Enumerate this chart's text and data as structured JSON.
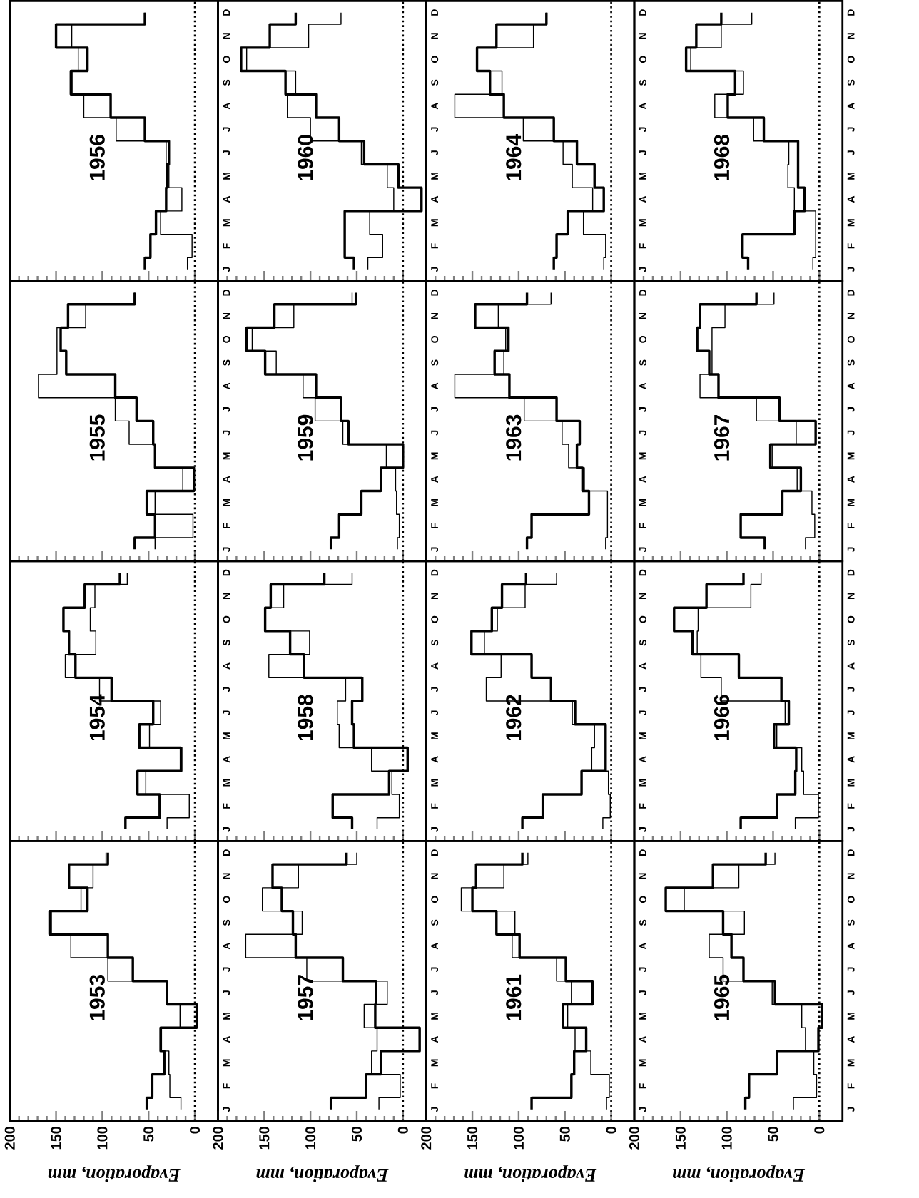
{
  "chart_data": [
    {
      "type": "step",
      "orientation": "horizontal",
      "title": "1953",
      "xlabel": "Evaporation, mm",
      "categories": [
        "D",
        "N",
        "O",
        "S",
        "A",
        "J",
        "J",
        "M",
        "A",
        "M",
        "F",
        "J"
      ],
      "xlim": [
        200,
        -25
      ],
      "xticks": [
        200,
        150,
        100,
        50,
        0
      ],
      "ref_lines": [
        {
          "axis": "x",
          "value": 0,
          "line_style": "dotted"
        }
      ],
      "series": [
        {
          "color": "#000000",
          "values": [
            94,
            136,
            116,
            157,
            94,
            67,
            30,
            -2,
            37,
            33,
            46,
            52
          ]
        },
        {
          "color": "#000000",
          "values": [
            96,
            110,
            123,
            155,
            134,
            94,
            31,
            16,
            36,
            28,
            27,
            15
          ]
        }
      ]
    },
    {
      "type": "step",
      "orientation": "horizontal",
      "title": "1954",
      "tick_labels": "y",
      "categories": [
        "D",
        "N",
        "O",
        "S",
        "A",
        "J",
        "J",
        "M",
        "A",
        "M",
        "F",
        "J"
      ],
      "xlim": [
        200,
        -25
      ],
      "xticks": [
        200,
        150,
        100,
        50,
        0
      ],
      "ref_lines": [
        {
          "axis": "x",
          "value": 0,
          "line_style": "dotted"
        }
      ],
      "series": [
        {
          "color": "#000000",
          "values": [
            81,
            119,
            142,
            136,
            129,
            90,
            45,
            60,
            15,
            62,
            38,
            75
          ]
        },
        {
          "color": "#000000",
          "values": [
            73,
            108,
            113,
            107,
            140,
            103,
            37,
            49,
            14,
            53,
            6,
            30
          ]
        }
      ]
    },
    {
      "type": "step",
      "orientation": "horizontal",
      "title": "1955",
      "tick_labels": "y",
      "categories": [
        "D",
        "N",
        "O",
        "S",
        "A",
        "J",
        "J",
        "M",
        "A",
        "M",
        "F",
        "J"
      ],
      "xlim": [
        200,
        -25
      ],
      "xticks": [
        200,
        150,
        100,
        50,
        0
      ],
      "ref_lines": [
        {
          "axis": "x",
          "value": 0,
          "line_style": "dotted"
        }
      ],
      "series": [
        {
          "color": "#000000",
          "values": [
            65,
            137,
            145,
            139,
            86,
            63,
            45,
            43,
            1,
            52,
            43,
            65
          ]
        },
        {
          "color": "#000000",
          "values": [
            65,
            118,
            149,
            149,
            169,
            86,
            71,
            43,
            13,
            43,
            2,
            43
          ]
        }
      ]
    },
    {
      "type": "step",
      "orientation": "horizontal",
      "title": "1956",
      "tick_labels": "y",
      "categories": [
        "D",
        "N",
        "O",
        "S",
        "A",
        "J",
        "J",
        "M",
        "A",
        "M",
        "F",
        "J"
      ],
      "xlim": [
        200,
        -25
      ],
      "xticks": [
        200,
        150,
        100,
        50,
        0
      ],
      "ref_lines": [
        {
          "axis": "x",
          "value": 0,
          "line_style": "dotted"
        }
      ],
      "series": [
        {
          "color": "#000000",
          "values": [
            54,
            150,
            116,
            134,
            91,
            54,
            28,
            30,
            31,
            42,
            48,
            54
          ]
        },
        {
          "color": "#000000",
          "values": [
            54,
            133,
            126,
            132,
            120,
            85,
            31,
            28,
            14,
            37,
            3,
            8
          ]
        }
      ]
    },
    {
      "type": "step",
      "orientation": "horizontal",
      "title": "1957",
      "xlabel": "Evaporation, mm",
      "categories": [
        "D",
        "N",
        "O",
        "S",
        "A",
        "J",
        "J",
        "M",
        "A",
        "M",
        "F",
        "J"
      ],
      "xlim": [
        200,
        -25
      ],
      "xticks": [
        200,
        150,
        100,
        50,
        0
      ],
      "ref_lines": [
        {
          "axis": "x",
          "value": 0,
          "line_style": "dotted"
        }
      ],
      "series": [
        {
          "color": "#000000",
          "values": [
            61,
            141,
            131,
            119,
            116,
            65,
            29,
            30,
            -18,
            24,
            40,
            78
          ]
        },
        {
          "color": "#000000",
          "values": [
            50,
            113,
            152,
            109,
            170,
            104,
            17,
            42,
            28,
            34,
            3,
            26
          ]
        }
      ]
    },
    {
      "type": "step",
      "orientation": "horizontal",
      "title": "1958",
      "tick_labels": "y",
      "categories": [
        "D",
        "N",
        "O",
        "S",
        "A",
        "J",
        "J",
        "M",
        "A",
        "M",
        "F",
        "J"
      ],
      "xlim": [
        200,
        -25
      ],
      "xticks": [
        200,
        150,
        100,
        50,
        0
      ],
      "ref_lines": [
        {
          "axis": "x",
          "value": 0,
          "line_style": "dotted"
        }
      ],
      "series": [
        {
          "color": "#000000",
          "values": [
            85,
            143,
            149,
            122,
            107,
            44,
            55,
            53,
            -5,
            15,
            76,
            55
          ]
        },
        {
          "color": "#000000",
          "values": [
            55,
            129,
            149,
            101,
            145,
            62,
            71,
            69,
            34,
            12,
            4,
            28
          ]
        }
      ]
    },
    {
      "type": "step",
      "orientation": "horizontal",
      "title": "1959",
      "tick_labels": "y",
      "categories": [
        "D",
        "N",
        "O",
        "S",
        "A",
        "J",
        "J",
        "M",
        "A",
        "M",
        "F",
        "J"
      ],
      "xlim": [
        200,
        -25
      ],
      "xticks": [
        200,
        150,
        100,
        50,
        0
      ],
      "ref_lines": [
        {
          "axis": "x",
          "value": 0,
          "line_style": "dotted"
        }
      ],
      "series": [
        {
          "color": "#000000",
          "values": [
            51,
            139,
            169,
            149,
            94,
            67,
            59,
            0,
            24,
            45,
            69,
            78
          ]
        },
        {
          "color": "#000000",
          "values": [
            55,
            118,
            163,
            137,
            108,
            95,
            65,
            18,
            8,
            7,
            4,
            6
          ]
        }
      ]
    },
    {
      "type": "step",
      "orientation": "horizontal",
      "title": "1960",
      "tick_labels": "y",
      "categories": [
        "D",
        "N",
        "O",
        "S",
        "A",
        "J",
        "J",
        "M",
        "A",
        "M",
        "F",
        "J"
      ],
      "xlim": [
        200,
        -25
      ],
      "xticks": [
        200,
        150,
        100,
        50,
        0
      ],
      "ref_lines": [
        {
          "axis": "x",
          "value": 0,
          "line_style": "dotted"
        }
      ],
      "series": [
        {
          "color": "#000000",
          "values": [
            116,
            144,
            175,
            127,
            94,
            69,
            42,
            5,
            -20,
            63,
            63,
            53
          ]
        },
        {
          "color": "#000000",
          "values": [
            67,
            102,
            169,
            116,
            125,
            100,
            45,
            17,
            10,
            36,
            22,
            38
          ]
        }
      ]
    },
    {
      "type": "step",
      "orientation": "horizontal",
      "title": "1961",
      "xlabel": "Evaporation, mm",
      "categories": [
        "D",
        "N",
        "O",
        "S",
        "A",
        "J",
        "J",
        "M",
        "A",
        "M",
        "F",
        "J"
      ],
      "xlim": [
        200,
        -25
      ],
      "xticks": [
        200,
        150,
        100,
        50,
        0
      ],
      "ref_lines": [
        {
          "axis": "x",
          "value": 0,
          "line_style": "dotted"
        }
      ],
      "series": [
        {
          "color": "#000000",
          "values": [
            96,
            146,
            150,
            124,
            99,
            49,
            20,
            52,
            27,
            40,
            43,
            86
          ]
        },
        {
          "color": "#000000",
          "values": [
            90,
            116,
            162,
            104,
            107,
            59,
            43,
            47,
            39,
            22,
            2,
            5
          ]
        }
      ]
    },
    {
      "type": "step",
      "orientation": "horizontal",
      "title": "1962",
      "tick_labels": "y",
      "categories": [
        "D",
        "N",
        "O",
        "S",
        "A",
        "J",
        "J",
        "M",
        "A",
        "M",
        "F",
        "J"
      ],
      "xlim": [
        200,
        -25
      ],
      "xticks": [
        200,
        150,
        100,
        50,
        0
      ],
      "ref_lines": [
        {
          "axis": "x",
          "value": 0,
          "line_style": "dotted"
        }
      ],
      "series": [
        {
          "color": "#000000",
          "values": [
            92,
            118,
            129,
            151,
            86,
            65,
            39,
            6,
            6,
            32,
            74,
            96
          ]
        },
        {
          "color": "#000000",
          "values": [
            59,
            93,
            123,
            137,
            119,
            135,
            42,
            18,
            21,
            3,
            1,
            9
          ]
        }
      ]
    },
    {
      "type": "step",
      "orientation": "horizontal",
      "title": "1963",
      "tick_labels": "y",
      "categories": [
        "D",
        "N",
        "O",
        "S",
        "A",
        "J",
        "J",
        "M",
        "A",
        "M",
        "F",
        "J"
      ],
      "xlim": [
        200,
        -25
      ],
      "xticks": [
        200,
        150,
        100,
        50,
        0
      ],
      "ref_lines": [
        {
          "axis": "x",
          "value": 0,
          "line_style": "dotted"
        }
      ],
      "series": [
        {
          "color": "#000000",
          "values": [
            91,
            147,
            111,
            126,
            110,
            59,
            34,
            37,
            31,
            24,
            86,
            91
          ]
        },
        {
          "color": "#000000",
          "values": [
            65,
            122,
            114,
            116,
            169,
            94,
            53,
            46,
            29,
            4,
            4,
            6
          ]
        }
      ]
    },
    {
      "type": "step",
      "orientation": "horizontal",
      "title": "1964",
      "tick_labels": "y",
      "categories": [
        "D",
        "N",
        "O",
        "S",
        "A",
        "J",
        "J",
        "M",
        "A",
        "M",
        "F",
        "J"
      ],
      "xlim": [
        200,
        -25
      ],
      "xticks": [
        200,
        150,
        100,
        50,
        0
      ],
      "ref_lines": [
        {
          "axis": "x",
          "value": 0,
          "line_style": "dotted"
        }
      ],
      "series": [
        {
          "color": "#000000",
          "values": [
            70,
            124,
            145,
            131,
            116,
            62,
            37,
            18,
            8,
            47,
            59,
            62
          ]
        },
        {
          "color": "#000000",
          "values": [
            70,
            84,
            145,
            118,
            169,
            95,
            52,
            42,
            20,
            30,
            6,
            8
          ]
        }
      ]
    },
    {
      "type": "step",
      "orientation": "horizontal",
      "title": "1965",
      "xlabel": "Evaporation, mm",
      "categories": [
        "D",
        "N",
        "O",
        "S",
        "A",
        "J",
        "J",
        "M",
        "A",
        "M",
        "F",
        "J"
      ],
      "xlim": [
        200,
        -25
      ],
      "xticks": [
        200,
        150,
        100,
        50,
        0
      ],
      "ref_lines": [
        {
          "axis": "x",
          "value": 0,
          "line_style": "dotted"
        }
      ],
      "series": [
        {
          "color": "#000000",
          "values": [
            58,
            115,
            166,
            104,
            95,
            82,
            48,
            -3,
            1,
            46,
            76,
            80
          ]
        },
        {
          "color": "#000000",
          "values": [
            48,
            87,
            146,
            81,
            119,
            104,
            51,
            19,
            15,
            6,
            3,
            28
          ]
        }
      ]
    },
    {
      "type": "step",
      "orientation": "horizontal",
      "title": "1966",
      "tick_labels": "y",
      "categories": [
        "D",
        "N",
        "O",
        "S",
        "A",
        "J",
        "J",
        "M",
        "A",
        "M",
        "F",
        "J"
      ],
      "xlim": [
        200,
        -25
      ],
      "xticks": [
        200,
        150,
        100,
        50,
        0
      ],
      "ref_lines": [
        {
          "axis": "x",
          "value": 0,
          "line_style": "dotted"
        }
      ],
      "series": [
        {
          "color": "#000000",
          "values": [
            82,
            122,
            157,
            137,
            87,
            41,
            33,
            49,
            25,
            26,
            46,
            85
          ]
        },
        {
          "color": "#000000",
          "values": [
            63,
            74,
            131,
            132,
            128,
            106,
            37,
            46,
            19,
            17,
            1,
            26
          ]
        }
      ]
    },
    {
      "type": "step",
      "orientation": "horizontal",
      "title": "1967",
      "tick_labels": "y",
      "categories": [
        "D",
        "N",
        "O",
        "S",
        "A",
        "J",
        "J",
        "M",
        "A",
        "M",
        "F",
        "J"
      ],
      "xlim": [
        200,
        -25
      ],
      "xticks": [
        200,
        150,
        100,
        50,
        0
      ],
      "ref_lines": [
        {
          "axis": "x",
          "value": 0,
          "line_style": "dotted"
        }
      ],
      "series": [
        {
          "color": "#000000",
          "values": [
            68,
            129,
            132,
            119,
            109,
            43,
            4,
            53,
            20,
            40,
            85,
            59
          ]
        },
        {
          "color": "#000000",
          "values": [
            49,
            102,
            116,
            116,
            129,
            68,
            25,
            51,
            24,
            8,
            5,
            15
          ]
        }
      ]
    },
    {
      "type": "step",
      "orientation": "horizontal",
      "title": "1968",
      "tick_labels": "y",
      "categories": [
        "D",
        "N",
        "O",
        "S",
        "A",
        "J",
        "J",
        "M",
        "A",
        "M",
        "F",
        "J"
      ],
      "xlim": [
        200,
        -25
      ],
      "xticks": [
        200,
        150,
        100,
        50,
        0
      ],
      "ref_lines": [
        {
          "axis": "x",
          "value": 0,
          "line_style": "dotted"
        }
      ],
      "series": [
        {
          "color": "#000000",
          "values": [
            106,
            133,
            144,
            91,
            99,
            60,
            23,
            23,
            16,
            27,
            83,
            77
          ]
        },
        {
          "color": "#000000",
          "values": [
            73,
            106,
            139,
            82,
            113,
            71,
            33,
            34,
            27,
            4,
            4,
            7
          ]
        }
      ]
    }
  ]
}
